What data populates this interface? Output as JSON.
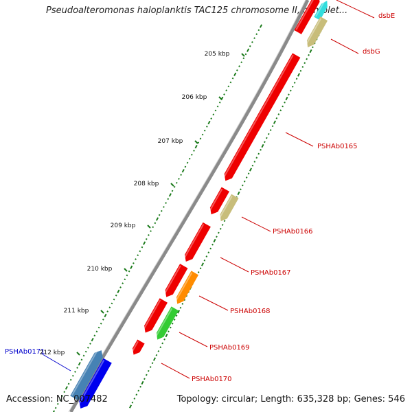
{
  "title": "Pseudoalteromonas haloplanktis TAC125 chromosome II, complet...",
  "footer": {
    "accession": "Accession: NC_007482",
    "summary": "Topology: circular; Length: 635,328 bp; Genes: 546"
  },
  "ticks": [
    "205 kbp",
    "206 kbp",
    "207 kbp",
    "208 kbp",
    "209 kbp",
    "210 kbp",
    "211 kbp",
    "212 kbp"
  ],
  "gene_labels": [
    {
      "text": "dsbE",
      "color": "#cc0000"
    },
    {
      "text": "dsbG",
      "color": "#cc0000"
    },
    {
      "text": "PSHAb0165",
      "color": "#cc0000"
    },
    {
      "text": "PSHAb0166",
      "color": "#cc0000"
    },
    {
      "text": "PSHAb0167",
      "color": "#cc0000"
    },
    {
      "text": "PSHAb0168",
      "color": "#cc0000"
    },
    {
      "text": "PSHAb0169",
      "color": "#cc0000"
    },
    {
      "text": "PSHAb0170",
      "color": "#cc0000"
    },
    {
      "text": "PSHAb0171",
      "color": "#0000cc"
    }
  ],
  "colors": {
    "backbone": "#8a8a8a",
    "tick_marks": "#1a7a1a",
    "gene_red": "#ee0000",
    "gene_khaki": "#c8bd7a",
    "gene_orange": "#ff8c00",
    "gene_green": "#33cc33",
    "gene_steelblue": "#4682b4",
    "gene_blue": "#0000ee",
    "gene_cyan": "#33dddd"
  }
}
